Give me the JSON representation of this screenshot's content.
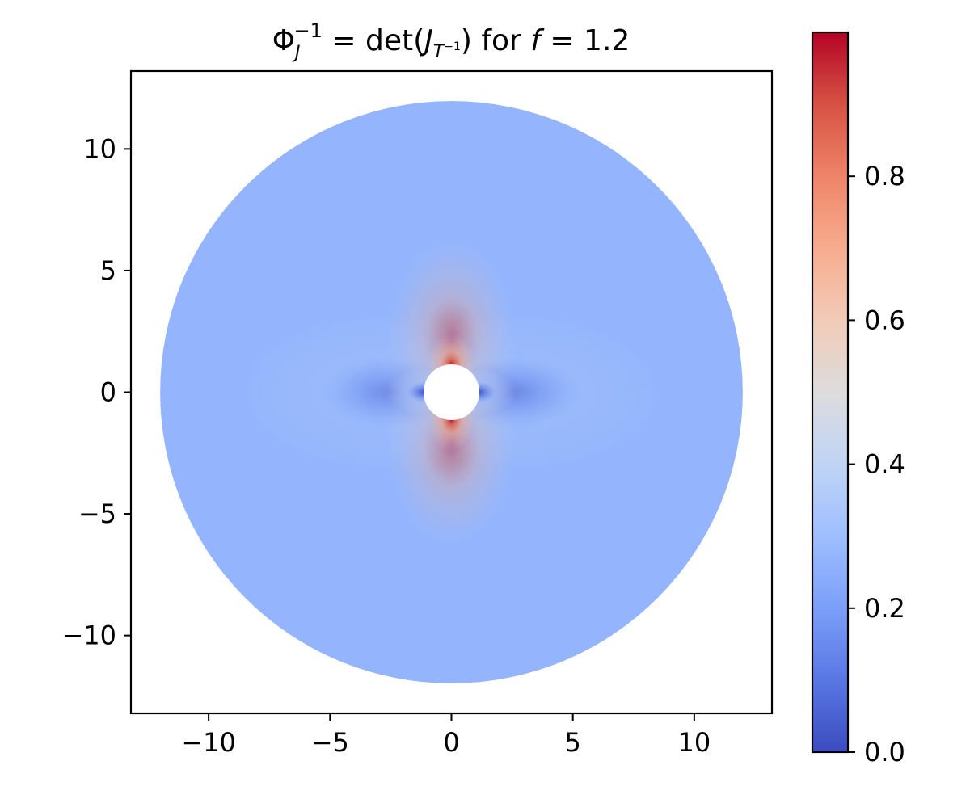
{
  "chart_data": {
    "type": "heatmap",
    "title": {
      "phi": "Φ",
      "sub_j": "J",
      "sup": "−1",
      "eq": " = det(",
      "J": "J",
      "sub_T": "T",
      "sub_T_sup": "−1",
      "close": ") for ",
      "f": "f",
      "eq2": " = 1.2"
    },
    "xlabel": "",
    "ylabel": "",
    "xlim": [
      -13.2,
      13.2
    ],
    "ylim": [
      -13.2,
      13.2
    ],
    "x_ticks": [
      -10,
      -5,
      0,
      5,
      10
    ],
    "y_ticks": [
      10,
      5,
      0,
      -5,
      -10
    ],
    "x_tick_labels": [
      "−10",
      "−5",
      "0",
      "5",
      "10"
    ],
    "y_tick_labels": [
      "10",
      "5",
      "0",
      "−5",
      "−10"
    ],
    "domain": {
      "shape": "annulus",
      "outer_radius": 12,
      "inner_radius": 1.15
    },
    "field_description": "values near 0.27 far field; rise toward ~1.0 above/below the hole; drop toward 0 left/right of the hole",
    "far_field_value": 0.27,
    "colormap": "coolwarm",
    "colorbar": {
      "range": [
        0.0,
        1.0
      ],
      "ticks": [
        0.0,
        0.2,
        0.4,
        0.6,
        0.8
      ],
      "tick_labels": [
        "0.0",
        "0.2",
        "0.4",
        "0.6",
        "0.8"
      ]
    },
    "grid": false,
    "legend": "none"
  }
}
